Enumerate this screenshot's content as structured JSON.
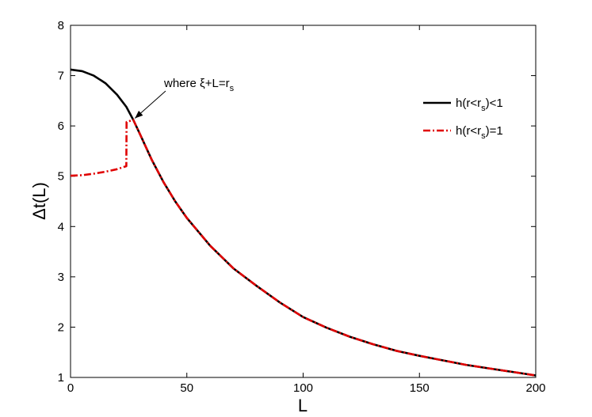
{
  "chart_data": {
    "type": "line",
    "xlabel": "L",
    "ylabel": "Δt(L)",
    "xlim": [
      0,
      200
    ],
    "ylim": [
      1,
      8
    ],
    "xticks": [
      0,
      50,
      100,
      150,
      200
    ],
    "yticks": [
      1,
      2,
      3,
      4,
      5,
      6,
      7,
      8
    ],
    "grid": false,
    "legend_position": "top-right",
    "series": [
      {
        "name": "h(r<r_s)<1",
        "color": "#000000",
        "style": "solid",
        "x": [
          0,
          5,
          10,
          15,
          20,
          24,
          27,
          30,
          35,
          40,
          45,
          50,
          60,
          70,
          80,
          90,
          100,
          110,
          120,
          130,
          140,
          150,
          160,
          170,
          180,
          190,
          200
        ],
        "y": [
          7.12,
          7.09,
          7.0,
          6.85,
          6.62,
          6.38,
          6.12,
          5.82,
          5.32,
          4.88,
          4.5,
          4.17,
          3.62,
          3.17,
          2.82,
          2.49,
          2.2,
          1.99,
          1.81,
          1.66,
          1.53,
          1.43,
          1.34,
          1.25,
          1.18,
          1.11,
          1.04
        ]
      },
      {
        "name": "h(r<r_s)=1",
        "color": "#e00000",
        "style": "dashdot",
        "x": [
          0,
          5,
          10,
          15,
          20,
          24,
          24.1,
          27,
          30,
          35,
          40,
          45,
          50,
          60,
          70,
          80,
          90,
          100,
          110,
          120,
          130,
          140,
          150,
          160,
          170,
          180,
          190,
          200
        ],
        "y": [
          5.01,
          5.02,
          5.05,
          5.09,
          5.14,
          5.2,
          6.08,
          6.12,
          5.82,
          5.32,
          4.88,
          4.5,
          4.17,
          3.62,
          3.17,
          2.82,
          2.49,
          2.2,
          1.99,
          1.81,
          1.66,
          1.53,
          1.43,
          1.34,
          1.25,
          1.18,
          1.11,
          1.04
        ]
      }
    ],
    "legend": [
      {
        "main": "h(r<r",
        "sub": "s",
        "tail": ")<1"
      },
      {
        "main": "h(r<r",
        "sub": "s",
        "tail": ")=1"
      }
    ],
    "annotation": {
      "main": "where ξ+L=r",
      "sub": "s",
      "points_to": {
        "x": 27,
        "y": 6.12
      }
    }
  }
}
